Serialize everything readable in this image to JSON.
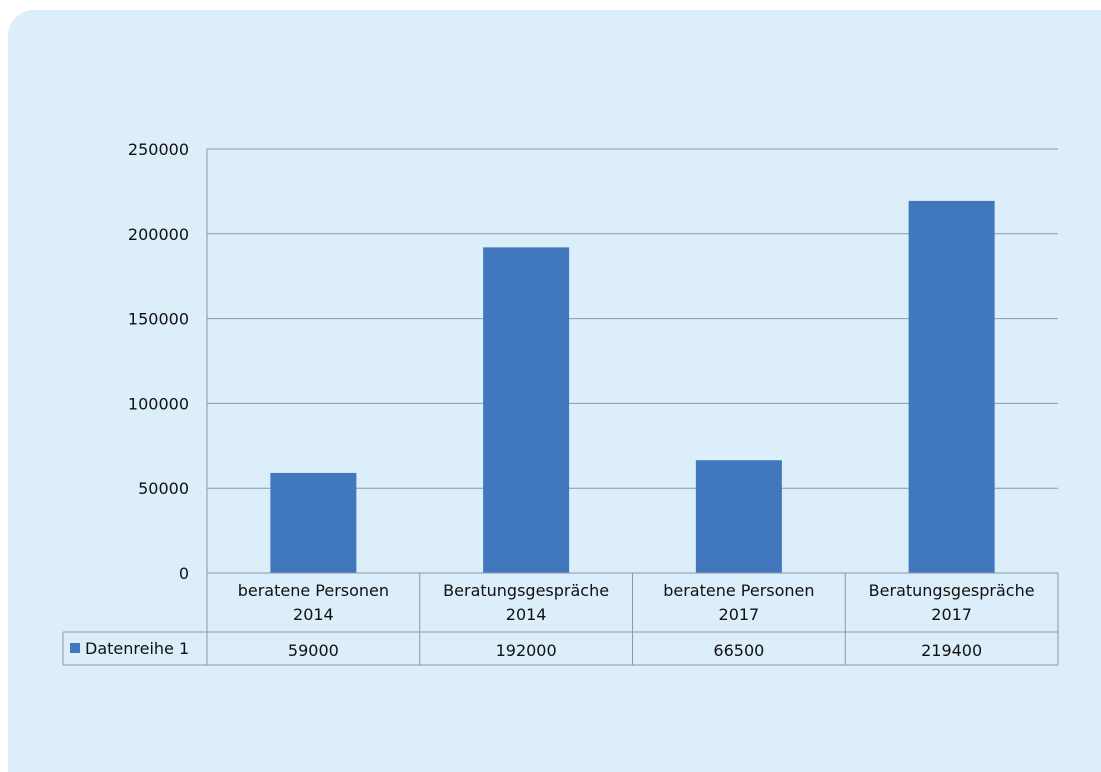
{
  "chart_data": {
    "type": "bar",
    "categories": [
      [
        "beratene Personen",
        "2014"
      ],
      [
        "Beratungsgespräche",
        "2014"
      ],
      [
        "beratene Personen",
        "2017"
      ],
      [
        "Beratungsgespräche",
        "2017"
      ]
    ],
    "series": [
      {
        "name": "Datenreihe 1",
        "values": [
          59000,
          192000,
          66500,
          219400
        ]
      }
    ],
    "value_labels": [
      "59000",
      "192000",
      "66500",
      "219400"
    ],
    "ylim": [
      0,
      250000
    ],
    "yticks": [
      0,
      50000,
      100000,
      150000,
      200000,
      250000
    ],
    "ytick_labels": [
      "0",
      "50000",
      "100000",
      "150000",
      "200000",
      "250000"
    ],
    "grid": true,
    "data_table": true,
    "colors": {
      "bar": "#4178bd",
      "grid": "#8a9aa8",
      "panel": "#dbeefa"
    }
  }
}
